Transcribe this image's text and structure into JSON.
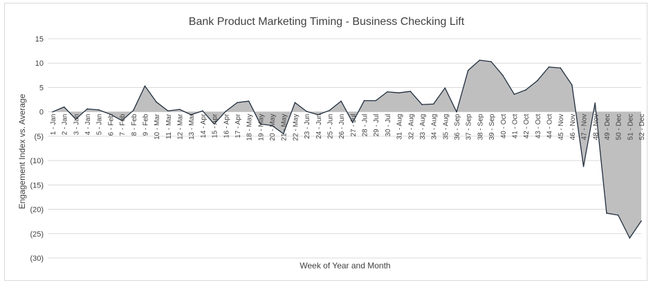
{
  "chart_data": {
    "type": "area",
    "title": "Bank Product Marketing Timing - Business Checking Lift",
    "xlabel": "Week of Year and Month",
    "ylabel": "Engagement Index vs. Average",
    "ylim": [
      -30,
      15
    ],
    "y_ticks": [
      15,
      10,
      5,
      0,
      -5,
      -10,
      -15,
      -20,
      -25,
      -30
    ],
    "y_tick_labels": [
      "15",
      "10",
      "5",
      "0",
      "(5)",
      "(10)",
      "(15)",
      "(20)",
      "(25)",
      "(30)"
    ],
    "grid": "horizontal",
    "legend": "none",
    "colors": {
      "fill": "#bfbfbf",
      "line": "#1f2d3d",
      "grid": "#d9d9d9",
      "text": "#404040"
    },
    "categories": [
      "1 - Jan",
      "2 - Jan",
      "3 - Jan",
      "4 - Jan",
      "5 - Jan",
      "6 - Feb",
      "7 - Feb",
      "8 - Feb",
      "9 - Feb",
      "10 - Mar",
      "11 - Mar",
      "12 - Mar",
      "13 - Mar",
      "14 - Apr",
      "15 - Apr",
      "16 - Apr",
      "17 - Apr",
      "18 - May",
      "19 - May",
      "20 - May",
      "21 - May",
      "22 - May",
      "23 - Jun",
      "24 - Jun",
      "25 - Jun",
      "26 - Jun",
      "27 - Jul",
      "28 - Jul",
      "29 - Jul",
      "30 - Jul",
      "31 - Aug",
      "32 - Aug",
      "33 - Aug",
      "34 - Aug",
      "35 - Aug",
      "36 - Sep",
      "37 - Sep",
      "38 - Sep",
      "39 - Sep",
      "40 - Oct",
      "41 - Oct",
      "42 - Oct",
      "43 - Oct",
      "44 - Oct",
      "45 - Nov",
      "46 - Nov",
      "47 - Nov",
      "48 - Nov",
      "49 - Dec",
      "50 - Dec",
      "51 - Dec",
      "52 - Dec"
    ],
    "values": [
      0,
      1,
      -1.5,
      0.6,
      0.4,
      -0.5,
      -1.8,
      0.3,
      5.3,
      2,
      0.2,
      0.5,
      -0.6,
      0.2,
      -2.5,
      0.1,
      1.9,
      2.2,
      -2.5,
      -2.8,
      -4.5,
      1.9,
      0.1,
      -0.6,
      0.3,
      2.2,
      -2.2,
      2.3,
      2.3,
      4.1,
      3.9,
      4.2,
      1.5,
      1.6,
      4.9,
      0,
      8.5,
      10.6,
      10.3,
      7.5,
      3.6,
      4.5,
      6.4,
      9.2,
      9,
      5.5,
      -11.2,
      1.8,
      -20.8,
      -21.2,
      -25.9,
      -22.4
    ]
  }
}
